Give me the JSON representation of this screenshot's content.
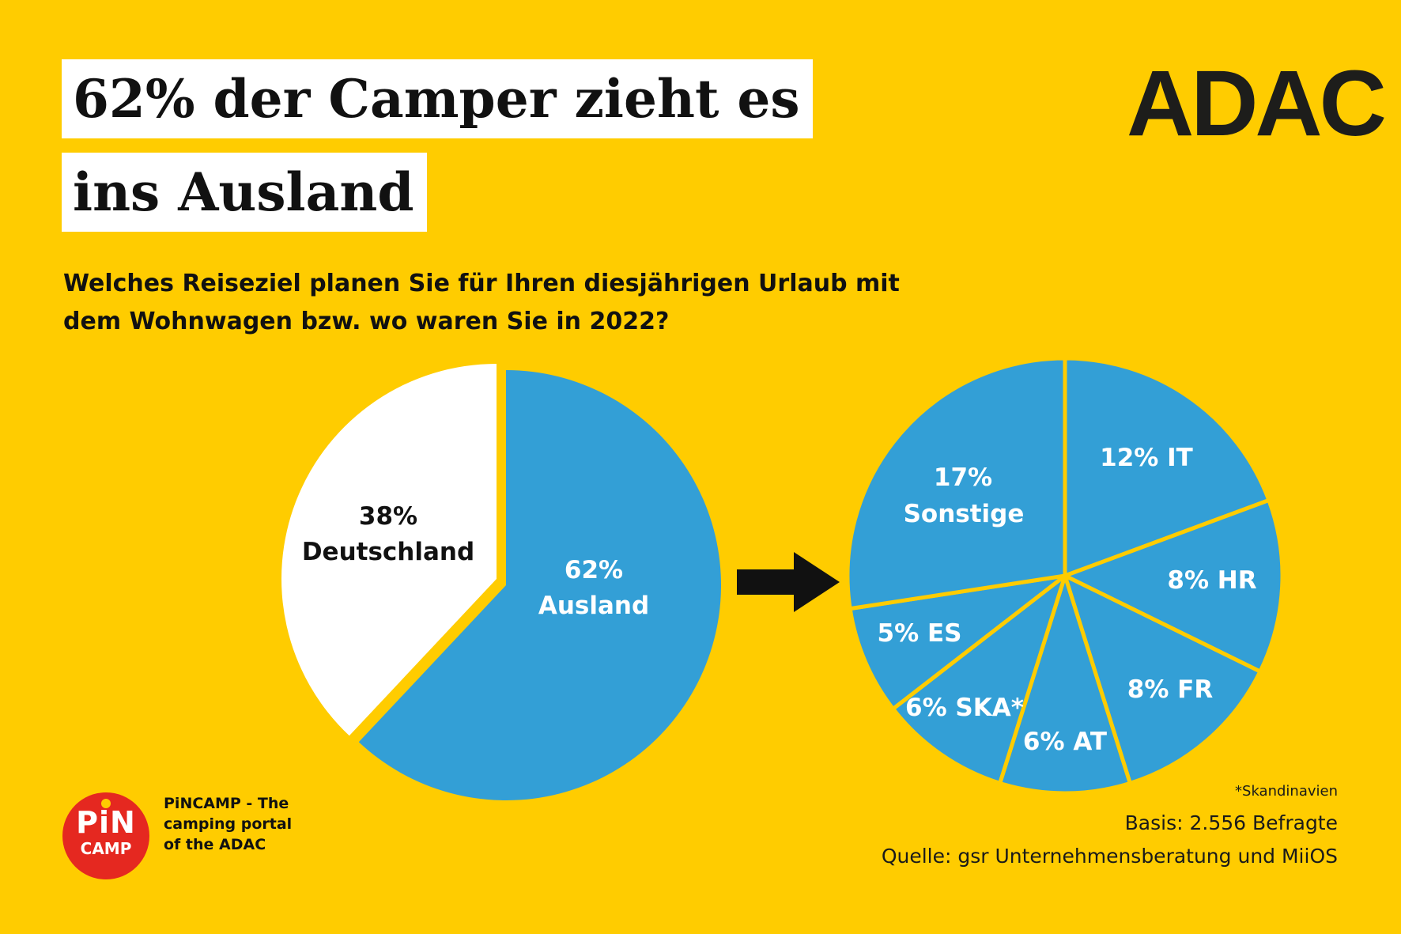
{
  "header": {
    "title_line1": "62% der Camper zieht es",
    "title_line2": "ins Ausland",
    "logo": "ADAC",
    "question": "Welches Reiseziel planen Sie für Ihren diesjährigen Urlaub mit dem Wohnwagen bzw. wo waren Sie in 2022?"
  },
  "colors": {
    "background": "#FFCC00",
    "slice_blue": "#339FD6",
    "slice_white": "#FFFFFF",
    "separator": "#FFCC00",
    "pincamp_red": "#E52820"
  },
  "chart_data": [
    {
      "type": "pie",
      "slices": [
        {
          "label": "Deutschland",
          "value": 38,
          "text": "38%",
          "color": "#FFFFFF"
        },
        {
          "label": "Ausland",
          "value": 62,
          "text": "62%",
          "color": "#339FD6"
        }
      ]
    },
    {
      "type": "pie",
      "slices": [
        {
          "label": "IT",
          "value": 12,
          "text": "12% IT"
        },
        {
          "label": "HR",
          "value": 8,
          "text": "8% HR"
        },
        {
          "label": "FR",
          "value": 8,
          "text": "8% FR"
        },
        {
          "label": "AT",
          "value": 6,
          "text": "6% AT"
        },
        {
          "label": "SKA*",
          "value": 6,
          "text": "6% SKA*"
        },
        {
          "label": "ES",
          "value": 5,
          "text": "5% ES"
        },
        {
          "label": "Sonstige",
          "value": 17,
          "text": "17%",
          "text2": "Sonstige"
        }
      ]
    }
  ],
  "pie_labels": {
    "left_deutschland_pct": "38%",
    "left_deutschland_name": "Deutschland",
    "left_ausland_pct": "62%",
    "left_ausland_name": "Ausland"
  },
  "arrow_icon": "arrow-right-icon",
  "footer": {
    "pincamp_logo_top": "PiN",
    "pincamp_logo_bottom": "CAMP",
    "pincamp_line1": "PiNCAMP - The",
    "pincamp_line2": "camping portal",
    "pincamp_line3": "of the ADAC",
    "footnote_ska": "*Skandinavien",
    "basis": "Basis: 2.556 Befragte",
    "quelle": "Quelle: gsr Unternehmensberatung und MiiOS"
  }
}
